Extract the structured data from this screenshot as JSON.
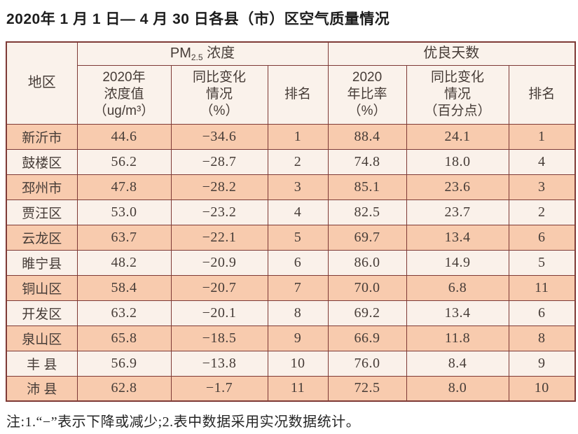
{
  "page": {
    "title": "2020年 1 月 1 日— 4 月 30 日各县（市）区空气质量情况",
    "note": "注:1.“−”表示下降或减少;2.表中数据采用实况数据统计。"
  },
  "colors": {
    "border": "#7e3a36",
    "row_odd_bg": "#f8cbae",
    "row_even_bg": "#faf1ea",
    "header_bg": "#faf2eb",
    "text": "#463c37"
  },
  "table": {
    "header": {
      "region": "地区",
      "pm_group": {
        "prefix": "PM",
        "sub": "2.5",
        "suffix": " 浓度"
      },
      "good_days_group": "优良天数",
      "sub_headers": {
        "pm_value_lines": [
          "2020年",
          "浓度值",
          "（ug/m³）"
        ],
        "pm_change_lines": [
          "同比变化",
          "情况",
          "（%）"
        ],
        "pm_rank": "排名",
        "ratio_lines": [
          "2020",
          "年比率",
          "（%）"
        ],
        "ratio_change_lines": [
          "同比变化",
          "情况",
          "（百分点）"
        ],
        "ratio_rank": "排名"
      }
    },
    "column_keys": [
      "region",
      "pm_value",
      "pm_change",
      "pm_rank",
      "ratio",
      "ratio_change",
      "ratio_rank"
    ],
    "rows": [
      {
        "region": "新沂市",
        "pm_value": "44.6",
        "pm_change": "−34.6",
        "pm_rank": "1",
        "ratio": "88.4",
        "ratio_change": "24.1",
        "ratio_rank": "1"
      },
      {
        "region": "鼓楼区",
        "pm_value": "56.2",
        "pm_change": "−28.7",
        "pm_rank": "2",
        "ratio": "74.8",
        "ratio_change": "18.0",
        "ratio_rank": "4"
      },
      {
        "region": "邳州市",
        "pm_value": "47.8",
        "pm_change": "−28.2",
        "pm_rank": "3",
        "ratio": "85.1",
        "ratio_change": "23.6",
        "ratio_rank": "3"
      },
      {
        "region": "贾汪区",
        "pm_value": "53.0",
        "pm_change": "−23.2",
        "pm_rank": "4",
        "ratio": "82.5",
        "ratio_change": "23.7",
        "ratio_rank": "2"
      },
      {
        "region": "云龙区",
        "pm_value": "63.7",
        "pm_change": "−22.1",
        "pm_rank": "5",
        "ratio": "69.7",
        "ratio_change": "13.4",
        "ratio_rank": "6"
      },
      {
        "region": "睢宁县",
        "pm_value": "48.2",
        "pm_change": "−20.9",
        "pm_rank": "6",
        "ratio": "86.0",
        "ratio_change": "14.9",
        "ratio_rank": "5"
      },
      {
        "region": "铜山区",
        "pm_value": "58.4",
        "pm_change": "−20.7",
        "pm_rank": "7",
        "ratio": "70.0",
        "ratio_change": "6.8",
        "ratio_rank": "11"
      },
      {
        "region": "开发区",
        "pm_value": "63.2",
        "pm_change": "−20.1",
        "pm_rank": "8",
        "ratio": "69.2",
        "ratio_change": "13.4",
        "ratio_rank": "6"
      },
      {
        "region": "泉山区",
        "pm_value": "65.8",
        "pm_change": "−18.5",
        "pm_rank": "9",
        "ratio": "66.9",
        "ratio_change": "11.8",
        "ratio_rank": "8"
      },
      {
        "region": "丰 县",
        "pm_value": "56.9",
        "pm_change": "−13.8",
        "pm_rank": "10",
        "ratio": "76.0",
        "ratio_change": "8.4",
        "ratio_rank": "9"
      },
      {
        "region": "沛 县",
        "pm_value": "62.8",
        "pm_change": "−1.7",
        "pm_rank": "11",
        "ratio": "72.5",
        "ratio_change": "8.0",
        "ratio_rank": "10"
      }
    ]
  }
}
